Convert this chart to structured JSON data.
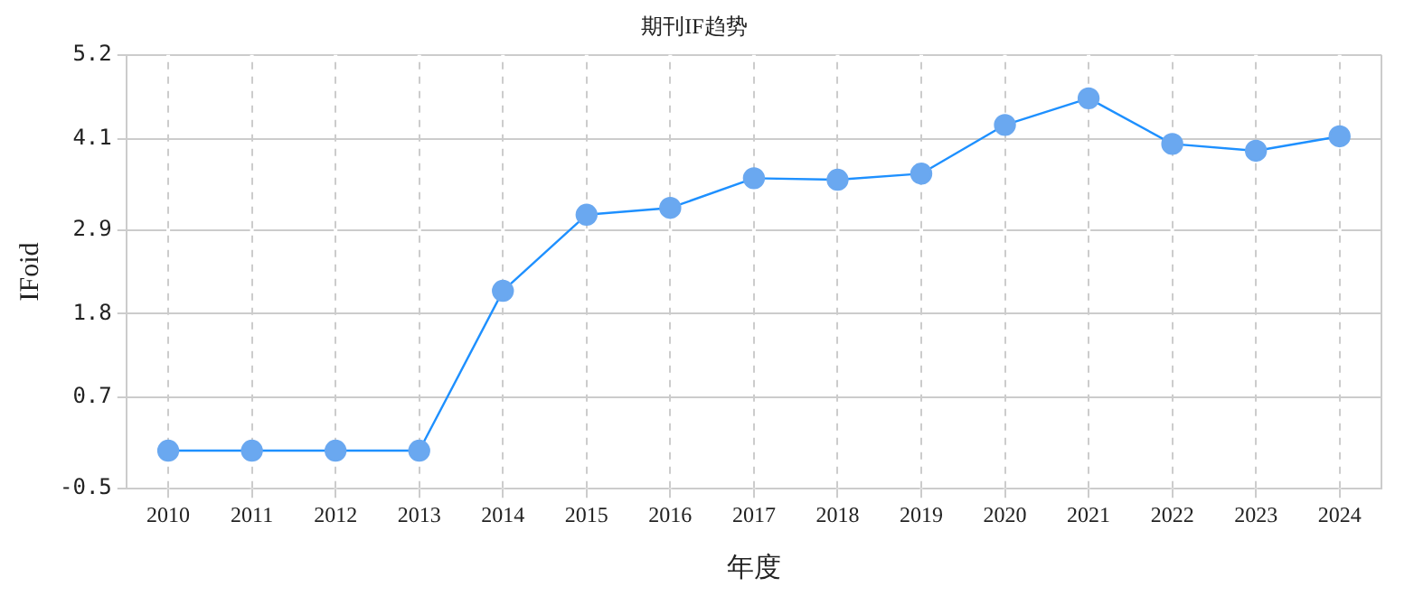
{
  "chart_data": {
    "type": "line",
    "title": "期刊IF趋势",
    "xlabel": "年度",
    "ylabel": "IFoid",
    "categories": [
      "2010",
      "2011",
      "2012",
      "2013",
      "2014",
      "2015",
      "2016",
      "2017",
      "2018",
      "2019",
      "2020",
      "2021",
      "2022",
      "2023",
      "2024"
    ],
    "series": [
      {
        "color": "#1e90ff",
        "values": [
          0,
          0,
          0,
          0,
          2.1,
          3.1,
          3.19,
          3.58,
          3.56,
          3.64,
          4.28,
          4.63,
          4.03,
          3.94,
          4.13
        ]
      }
    ],
    "ylim": [
      -0.5,
      5.2
    ],
    "yticks": [
      -0.5,
      0.7,
      1.8,
      2.9,
      4.1,
      5.2
    ],
    "grid": true,
    "marker": "circle",
    "line_style": "solid",
    "legend": false
  }
}
